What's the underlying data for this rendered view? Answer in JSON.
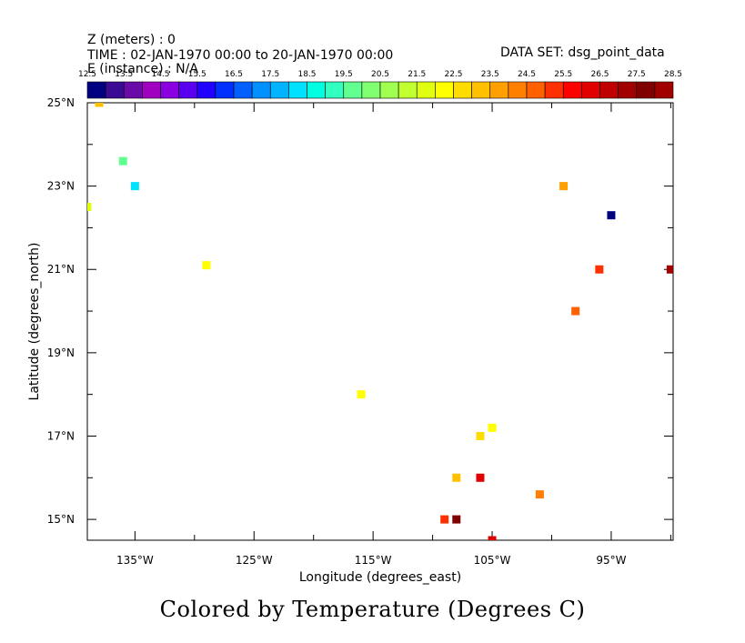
{
  "header": {
    "z_line": "Z (meters) : 0",
    "time_line": "TIME : 02-JAN-1970 00:00 to 20-JAN-1970 00:00",
    "e_line": "E (instance) : N/A",
    "dataset_line": "DATA SET: dsg_point_data"
  },
  "caption": "Colored by Temperature (Degrees C)",
  "colorbar": {
    "labels": [
      "12.5",
      "13.5",
      "14.5",
      "15.5",
      "16.5",
      "17.5",
      "18.5",
      "19.5",
      "20.5",
      "21.5",
      "22.5",
      "23.5",
      "24.5",
      "25.5",
      "26.5",
      "27.5",
      "28.5"
    ],
    "colors": [
      "#000080",
      "#3a0a94",
      "#6a0aa8",
      "#a000c0",
      "#8a00e0",
      "#5a00f0",
      "#2000ff",
      "#0030ff",
      "#0060ff",
      "#0090ff",
      "#00b4ff",
      "#00e0ff",
      "#00ffe0",
      "#30ffc0",
      "#60ff90",
      "#80ff70",
      "#a0ff50",
      "#c0ff30",
      "#e0ff10",
      "#ffff00",
      "#ffdc00",
      "#ffc000",
      "#ffa000",
      "#ff8000",
      "#ff6000",
      "#ff3000",
      "#ff0000",
      "#e00000",
      "#c00000",
      "#a00000",
      "#800000",
      "#a00000"
    ]
  },
  "chart_data": {
    "type": "scatter",
    "xlabel": "Longitude (degrees_east)",
    "ylabel": "Latitude (degrees_north)",
    "xlim": [
      -139,
      -89.8
    ],
    "ylim": [
      14.5,
      25
    ],
    "x_ticks": [
      {
        "value": -135,
        "label": "135°W"
      },
      {
        "value": -125,
        "label": "125°W"
      },
      {
        "value": -115,
        "label": "115°W"
      },
      {
        "value": -105,
        "label": "105°W"
      },
      {
        "value": -95,
        "label": "95°W"
      }
    ],
    "y_ticks": [
      {
        "value": 15,
        "label": "15°N"
      },
      {
        "value": 17,
        "label": "17°N"
      },
      {
        "value": 19,
        "label": "19°N"
      },
      {
        "value": 21,
        "label": "21°N"
      },
      {
        "value": 23,
        "label": "23°N"
      },
      {
        "value": 25,
        "label": "25°N"
      }
    ],
    "points": [
      {
        "lon": -138,
        "lat": 25.0,
        "temp": 23.0
      },
      {
        "lon": -136,
        "lat": 23.6,
        "temp": 19.6
      },
      {
        "lon": -135,
        "lat": 23.0,
        "temp": 18.3
      },
      {
        "lon": -139,
        "lat": 22.5,
        "temp": 21.7
      },
      {
        "lon": -129,
        "lat": 21.1,
        "temp": 22.3
      },
      {
        "lon": -116,
        "lat": 18.0,
        "temp": 22.3
      },
      {
        "lon": -105,
        "lat": 17.2,
        "temp": 22.3
      },
      {
        "lon": -106,
        "lat": 17.0,
        "temp": 22.8
      },
      {
        "lon": -108,
        "lat": 16.0,
        "temp": 23.4
      },
      {
        "lon": -106,
        "lat": 16.0,
        "temp": 26.0
      },
      {
        "lon": -109,
        "lat": 15.0,
        "temp": 25.3
      },
      {
        "lon": -108,
        "lat": 15.0,
        "temp": 27.8
      },
      {
        "lon": -105,
        "lat": 14.5,
        "temp": 26.4
      },
      {
        "lon": -101,
        "lat": 15.6,
        "temp": 24.4
      },
      {
        "lon": -98,
        "lat": 20.0,
        "temp": 24.5
      },
      {
        "lon": -96,
        "lat": 21.0,
        "temp": 25.3
      },
      {
        "lon": -99,
        "lat": 23.0,
        "temp": 23.9
      },
      {
        "lon": -95,
        "lat": 22.3,
        "temp": 12.7
      },
      {
        "lon": -90,
        "lat": 21.0,
        "temp": 28.3
      }
    ]
  }
}
